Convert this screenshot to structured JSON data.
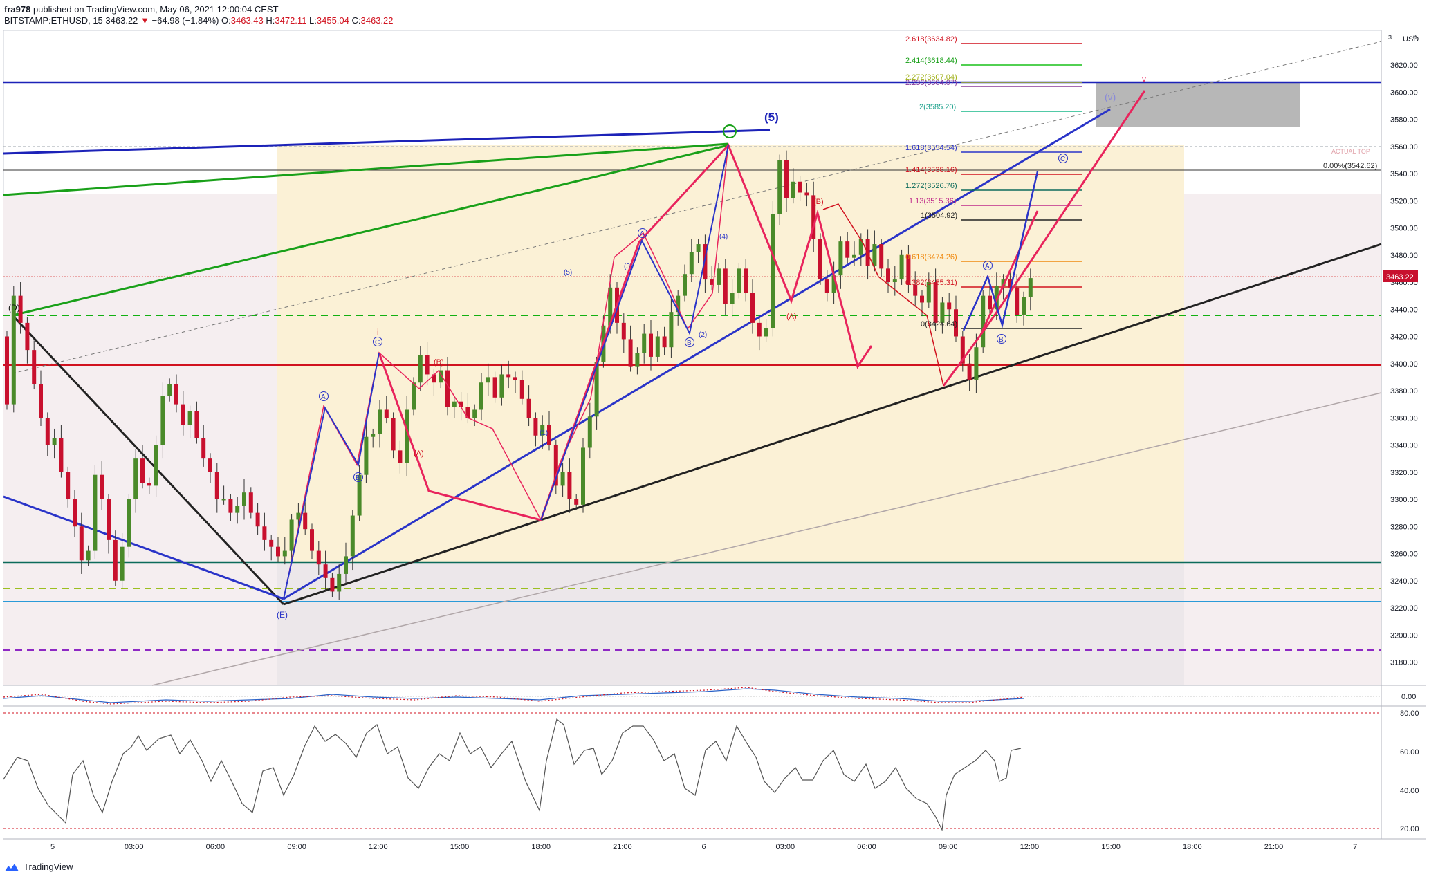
{
  "header": {
    "publisher": "fra978",
    "published_text": "published on TradingView.com, May 06, 2021 12:00:04 CEST",
    "symbol": "BITSTAMP:ETHUSD, 15",
    "last": "3463.22",
    "change_arrow": "▼",
    "change": "−64.98 (−1.84%)",
    "o_label": "O:",
    "o": "3463.43",
    "h_label": "H:",
    "h": "3472.11",
    "l_label": "L:",
    "l": "3455.04",
    "c_label": "C:",
    "c": "3463.22"
  },
  "footer": {
    "brand": "TradingView"
  },
  "colors": {
    "up": "#4a8a2a",
    "down": "#c8102e",
    "fib_red": "#d1121f",
    "blue": "#2a34c8",
    "green": "#19a019",
    "pink": "#e8245c"
  },
  "price_axis": {
    "currency": "USD",
    "ticks": [
      "3620.00",
      "3600.00",
      "3580.00",
      "3560.00",
      "3540.00",
      "3520.00",
      "3500.00",
      "3480.00",
      "3460.00",
      "3440.00",
      "3420.00",
      "3400.00",
      "3380.00",
      "3360.00",
      "3340.00",
      "3320.00",
      "3300.00",
      "3280.00",
      "3260.00",
      "3240.00",
      "3220.00",
      "3200.00",
      "3180.00"
    ],
    "last_price_label": "3463.22",
    "actual_top": "ACTUAL TOP",
    "top_marks": [
      "3",
      "0"
    ]
  },
  "time_axis": {
    "ticks": [
      "5",
      "03:00",
      "06:00",
      "09:00",
      "12:00",
      "15:00",
      "18:00",
      "21:00",
      "6",
      "03:00",
      "06:00",
      "09:00",
      "12:00",
      "15:00",
      "18:00",
      "21:00",
      "7"
    ]
  },
  "macd_axis": {
    "ticks": [
      "0.00"
    ]
  },
  "rsi_axis": {
    "ticks": [
      "80.00",
      "60.00",
      "40.00",
      "20.00"
    ]
  },
  "fib_labels": {
    "f2618": "2.618(3634.82)",
    "f2414": "2.414(3618.44)",
    "f2272": "2.272(3607.04)",
    "f2236": "2.236(3604.07)",
    "f2": "2(3585.20)",
    "f1618": "1.618(3554.54)",
    "f1414": "1.414(3538.16)",
    "f1272": "1.272(3526.76)",
    "f113": "1.13(3515.36)",
    "f1": "1(3504.92)",
    "f0618": "0.618(3474.26)",
    "f0382": "0.382(3455.31)",
    "f0": "0(3424.64)",
    "f_top": "0.00%(3542.62)"
  },
  "wave_labels": {
    "D": "(D)",
    "E": "(E)",
    "five": "(5)",
    "v": "(v)",
    "v_red": "v",
    "i_red": "i",
    "A_red": "(A)",
    "B_red": "(B)",
    "C_red": "(C)",
    "A_circ": "A",
    "B_circ": "B",
    "C_circ": "C",
    "n1": "(1)",
    "n2": "(2)",
    "n3": "(3)",
    "n4": "(4)",
    "n5": "(5)"
  },
  "chart_data": {
    "type": "candlestick",
    "title": "BITSTAMP:ETHUSD, 15",
    "ylim": [
      3165,
      3650
    ],
    "x_ticks": [
      "5",
      "03:00",
      "06:00",
      "09:00",
      "12:00",
      "15:00",
      "18:00",
      "21:00",
      "6",
      "03:00",
      "06:00",
      "09:00",
      "12:00",
      "15:00",
      "18:00",
      "21:00",
      "7"
    ],
    "price_key_levels": [
      3600,
      3543,
      3435,
      3398,
      3252,
      3232,
      3223,
      3187
    ],
    "fib_levels": [
      3634.82,
      3618.44,
      3607.04,
      3604.07,
      3585.2,
      3554.54,
      3538.16,
      3526.76,
      3515.36,
      3504.92,
      3474.26,
      3455.31,
      3424.64
    ],
    "candles_close": [
      3370,
      3450,
      3430,
      3410,
      3385,
      3360,
      3340,
      3345,
      3320,
      3300,
      3280,
      3255,
      3262,
      3318,
      3300,
      3270,
      3240,
      3265,
      3300,
      3330,
      3312,
      3310,
      3340,
      3376,
      3385,
      3370,
      3355,
      3365,
      3345,
      3330,
      3320,
      3300,
      3300,
      3290,
      3295,
      3305,
      3290,
      3280,
      3270,
      3265,
      3258,
      3262,
      3285,
      3290,
      3278,
      3262,
      3252,
      3242,
      3232,
      3245,
      3258,
      3288,
      3318,
      3346,
      3348,
      3366,
      3360,
      3336,
      3327,
      3366,
      3386,
      3406,
      3392,
      3386,
      3395,
      3368,
      3372,
      3368,
      3360,
      3366,
      3386,
      3390,
      3375,
      3392,
      3390,
      3388,
      3374,
      3360,
      3347,
      3355,
      3340,
      3310,
      3320,
      3300,
      3296,
      3338,
      3361,
      3401,
      3428,
      3456,
      3430,
      3418,
      3398,
      3408,
      3422,
      3405,
      3420,
      3412,
      3438,
      3450,
      3466,
      3482,
      3488,
      3462,
      3458,
      3470,
      3444,
      3452,
      3470,
      3452,
      3430,
      3420,
      3426,
      3510,
      3550,
      3522,
      3534,
      3526,
      3524,
      3492,
      3462,
      3452,
      3465,
      3490,
      3478,
      3480,
      3492,
      3472,
      3488,
      3470,
      3460,
      3462,
      3480,
      3458,
      3450,
      3445,
      3460,
      3430,
      3445,
      3440,
      3420,
      3400,
      3388,
      3412,
      3450,
      3440,
      3457,
      3462,
      3456,
      3436,
      3449,
      3463
    ]
  }
}
